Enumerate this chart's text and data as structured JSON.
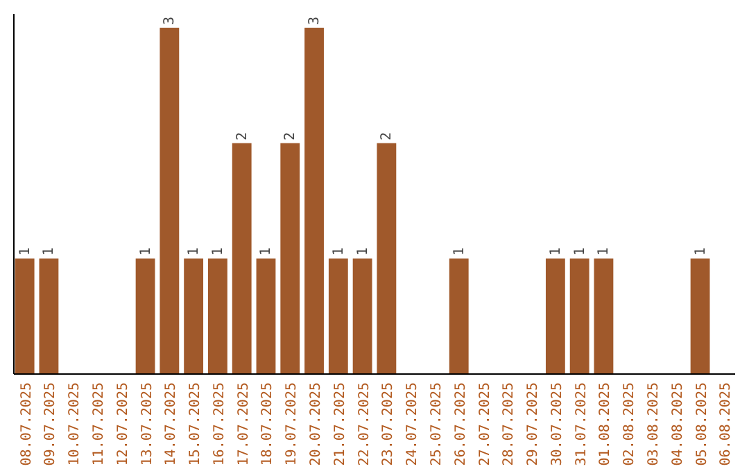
{
  "chart_data": {
    "type": "bar",
    "categories": [
      "08.07.2025",
      "09.07.2025",
      "10.07.2025",
      "11.07.2025",
      "12.07.2025",
      "13.07.2025",
      "14.07.2025",
      "15.07.2025",
      "16.07.2025",
      "17.07.2025",
      "18.07.2025",
      "19.07.2025",
      "20.07.2025",
      "21.07.2025",
      "22.07.2025",
      "23.07.2025",
      "24.07.2025",
      "25.07.2025",
      "26.07.2025",
      "27.07.2025",
      "28.07.2025",
      "29.07.2025",
      "30.07.2025",
      "31.07.2025",
      "01.08.2025",
      "02.08.2025",
      "03.08.2025",
      "04.08.2025",
      "05.08.2025",
      "06.08.2025"
    ],
    "values": [
      1,
      1,
      0,
      0,
      0,
      1,
      3,
      1,
      1,
      2,
      1,
      2,
      3,
      1,
      1,
      2,
      0,
      0,
      1,
      0,
      0,
      0,
      1,
      1,
      1,
      0,
      0,
      0,
      1,
      0
    ],
    "value_labels": [
      "1",
      "1",
      null,
      null,
      null,
      "1",
      "3",
      "1",
      "1",
      "2",
      "1",
      "2",
      "3",
      "1",
      "1",
      "2",
      null,
      null,
      "1",
      null,
      null,
      null,
      "1",
      "1",
      "1",
      null,
      null,
      null,
      "1",
      null
    ],
    "color": "#a0592b"
  }
}
